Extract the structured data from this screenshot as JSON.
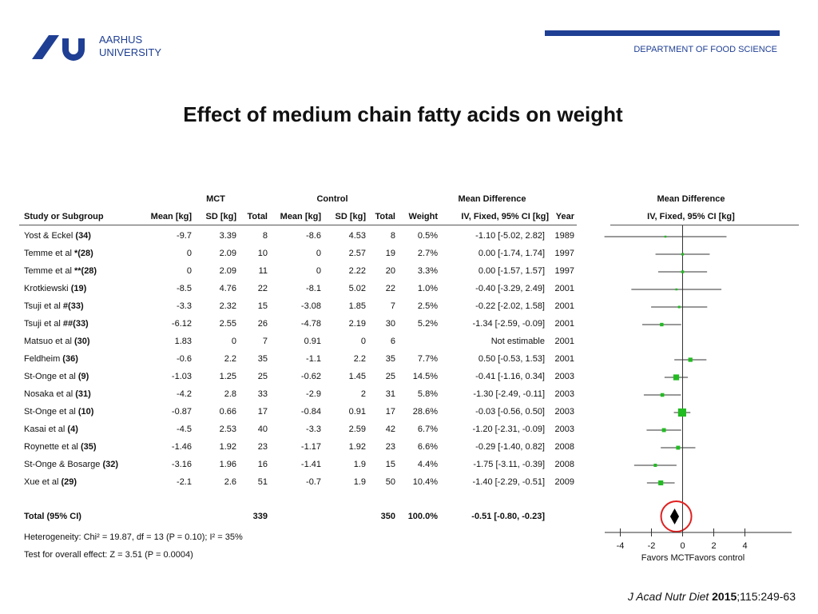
{
  "header": {
    "university_line1": "AARHUS",
    "university_line2": "UNIVERSITY",
    "department": "DEPARTMENT OF FOOD SCIENCE"
  },
  "slide_title": "Effect of medium chain fatty acids on weight",
  "table": {
    "group_headers": {
      "mct": "MCT",
      "control": "Control",
      "md_table": "Mean Difference",
      "md_plot": "Mean Difference"
    },
    "columns": {
      "study": "Study or Subgroup",
      "mct_mean": "Mean [kg]",
      "mct_sd": "SD [kg]",
      "mct_total": "Total",
      "ctl_mean": "Mean [kg]",
      "ctl_sd": "SD [kg]",
      "ctl_total": "Total",
      "weight": "Weight",
      "ci": "IV, Fixed, 95% CI [kg]",
      "year": "Year",
      "plot": "IV, Fixed, 95% CI [kg]"
    },
    "rows": [
      {
        "name": "Yost & Eckel ",
        "ref": "(34)",
        "mct_mean": "-9.7",
        "mct_sd": "3.39",
        "mct_total": "8",
        "ctl_mean": "-8.6",
        "ctl_sd": "4.53",
        "ctl_total": "8",
        "weight": "0.5%",
        "ci": "-1.10 [-5.02, 2.82]",
        "year": "1989"
      },
      {
        "name": "Temme et al ",
        "ref": "*(28)",
        "mct_mean": "0",
        "mct_sd": "2.09",
        "mct_total": "10",
        "ctl_mean": "0",
        "ctl_sd": "2.57",
        "ctl_total": "19",
        "weight": "2.7%",
        "ci": "0.00 [-1.74, 1.74]",
        "year": "1997"
      },
      {
        "name": "Temme et al ",
        "ref": "**(28)",
        "mct_mean": "0",
        "mct_sd": "2.09",
        "mct_total": "11",
        "ctl_mean": "0",
        "ctl_sd": "2.22",
        "ctl_total": "20",
        "weight": "3.3%",
        "ci": "0.00 [-1.57, 1.57]",
        "year": "1997"
      },
      {
        "name": "Krotkiewski ",
        "ref": "(19)",
        "mct_mean": "-8.5",
        "mct_sd": "4.76",
        "mct_total": "22",
        "ctl_mean": "-8.1",
        "ctl_sd": "5.02",
        "ctl_total": "22",
        "weight": "1.0%",
        "ci": "-0.40 [-3.29, 2.49]",
        "year": "2001"
      },
      {
        "name": "Tsuji et al ",
        "ref": "#(33)",
        "mct_mean": "-3.3",
        "mct_sd": "2.32",
        "mct_total": "15",
        "ctl_mean": "-3.08",
        "ctl_sd": "1.85",
        "ctl_total": "7",
        "weight": "2.5%",
        "ci": "-0.22 [-2.02, 1.58]",
        "year": "2001"
      },
      {
        "name": "Tsuji et al ",
        "ref": "##(33)",
        "mct_mean": "-6.12",
        "mct_sd": "2.55",
        "mct_total": "26",
        "ctl_mean": "-4.78",
        "ctl_sd": "2.19",
        "ctl_total": "30",
        "weight": "5.2%",
        "ci": "-1.34 [-2.59, -0.09]",
        "year": "2001"
      },
      {
        "name": "Matsuo et al ",
        "ref": "(30)",
        "mct_mean": "1.83",
        "mct_sd": "0",
        "mct_total": "7",
        "ctl_mean": "0.91",
        "ctl_sd": "0",
        "ctl_total": "6",
        "weight": "",
        "ci": "Not estimable",
        "year": "2001"
      },
      {
        "name": "Feldheim ",
        "ref": "(36)",
        "mct_mean": "-0.6",
        "mct_sd": "2.2",
        "mct_total": "35",
        "ctl_mean": "-1.1",
        "ctl_sd": "2.2",
        "ctl_total": "35",
        "weight": "7.7%",
        "ci": "0.50 [-0.53, 1.53]",
        "year": "2001"
      },
      {
        "name": "St-Onge et al ",
        "ref": "(9)",
        "mct_mean": "-1.03",
        "mct_sd": "1.25",
        "mct_total": "25",
        "ctl_mean": "-0.62",
        "ctl_sd": "1.45",
        "ctl_total": "25",
        "weight": "14.5%",
        "ci": "-0.41 [-1.16, 0.34]",
        "year": "2003"
      },
      {
        "name": "Nosaka et al ",
        "ref": "(31)",
        "mct_mean": "-4.2",
        "mct_sd": "2.8",
        "mct_total": "33",
        "ctl_mean": "-2.9",
        "ctl_sd": "2",
        "ctl_total": "31",
        "weight": "5.8%",
        "ci": "-1.30 [-2.49, -0.11]",
        "year": "2003"
      },
      {
        "name": "St-Onge et al ",
        "ref": "(10)",
        "mct_mean": "-0.87",
        "mct_sd": "0.66",
        "mct_total": "17",
        "ctl_mean": "-0.84",
        "ctl_sd": "0.91",
        "ctl_total": "17",
        "weight": "28.6%",
        "ci": "-0.03 [-0.56, 0.50]",
        "year": "2003"
      },
      {
        "name": "Kasai et al ",
        "ref": "(4)",
        "mct_mean": "-4.5",
        "mct_sd": "2.53",
        "mct_total": "40",
        "ctl_mean": "-3.3",
        "ctl_sd": "2.59",
        "ctl_total": "42",
        "weight": "6.7%",
        "ci": "-1.20 [-2.31, -0.09]",
        "year": "2003"
      },
      {
        "name": "Roynette et al ",
        "ref": "(35)",
        "mct_mean": "-1.46",
        "mct_sd": "1.92",
        "mct_total": "23",
        "ctl_mean": "-1.17",
        "ctl_sd": "1.92",
        "ctl_total": "23",
        "weight": "6.6%",
        "ci": "-0.29 [-1.40, 0.82]",
        "year": "2008"
      },
      {
        "name": "St-Onge & Bosarge ",
        "ref": "(32)",
        "mct_mean": "-3.16",
        "mct_sd": "1.96",
        "mct_total": "16",
        "ctl_mean": "-1.41",
        "ctl_sd": "1.9",
        "ctl_total": "15",
        "weight": "4.4%",
        "ci": "-1.75 [-3.11, -0.39]",
        "year": "2008"
      },
      {
        "name": "Xue et al ",
        "ref": "(29)",
        "mct_mean": "-2.1",
        "mct_sd": "2.6",
        "mct_total": "51",
        "ctl_mean": "-0.7",
        "ctl_sd": "1.9",
        "ctl_total": "50",
        "weight": "10.4%",
        "ci": "-1.40 [-2.29, -0.51]",
        "year": "2009"
      }
    ],
    "total": {
      "label": "Total (95% CI)",
      "mct_total": "339",
      "ctl_total": "350",
      "weight": "100.0%",
      "ci": "-0.51 [-0.80, -0.23]"
    },
    "heterogeneity": "Heterogeneity: Chi² = 19.87, df = 13 (P = 0.10); I² = 35%",
    "overall_effect": "Test for overall effect: Z = 3.51 (P = 0.0004)"
  },
  "chart_data": {
    "type": "forest",
    "title": "Mean Difference",
    "xlabel": "IV, Fixed, 95% CI [kg]",
    "xlim": [
      -5,
      7
    ],
    "xticks": [
      -4,
      -2,
      0,
      2,
      4
    ],
    "favors_left": "Favors MCT",
    "favors_right": "Favors control",
    "studies": [
      {
        "est": -1.1,
        "lo": -5.02,
        "hi": 2.82,
        "weight": 0.5
      },
      {
        "est": 0.0,
        "lo": -1.74,
        "hi": 1.74,
        "weight": 2.7
      },
      {
        "est": 0.0,
        "lo": -1.57,
        "hi": 1.57,
        "weight": 3.3
      },
      {
        "est": -0.4,
        "lo": -3.29,
        "hi": 2.49,
        "weight": 1.0
      },
      {
        "est": -0.22,
        "lo": -2.02,
        "hi": 1.58,
        "weight": 2.5
      },
      {
        "est": -1.34,
        "lo": -2.59,
        "hi": -0.09,
        "weight": 5.2
      },
      null,
      {
        "est": 0.5,
        "lo": -0.53,
        "hi": 1.53,
        "weight": 7.7
      },
      {
        "est": -0.41,
        "lo": -1.16,
        "hi": 0.34,
        "weight": 14.5
      },
      {
        "est": -1.3,
        "lo": -2.49,
        "hi": -0.11,
        "weight": 5.8
      },
      {
        "est": -0.03,
        "lo": -0.56,
        "hi": 0.5,
        "weight": 28.6
      },
      {
        "est": -1.2,
        "lo": -2.31,
        "hi": -0.09,
        "weight": 6.7
      },
      {
        "est": -0.29,
        "lo": -1.4,
        "hi": 0.82,
        "weight": 6.6
      },
      {
        "est": -1.75,
        "lo": -3.11,
        "hi": -0.39,
        "weight": 4.4
      },
      {
        "est": -1.4,
        "lo": -2.29,
        "hi": -0.51,
        "weight": 10.4
      }
    ],
    "pooled": {
      "est": -0.51,
      "lo": -0.8,
      "hi": -0.23
    },
    "colors": {
      "marker": "#22bb22",
      "line": "#333333",
      "diamond": "#000000",
      "highlight": "#e02020"
    }
  },
  "citation": {
    "journal": "J Acad Nutr Diet",
    "year": "2015",
    "rest": ";115:249-63"
  }
}
